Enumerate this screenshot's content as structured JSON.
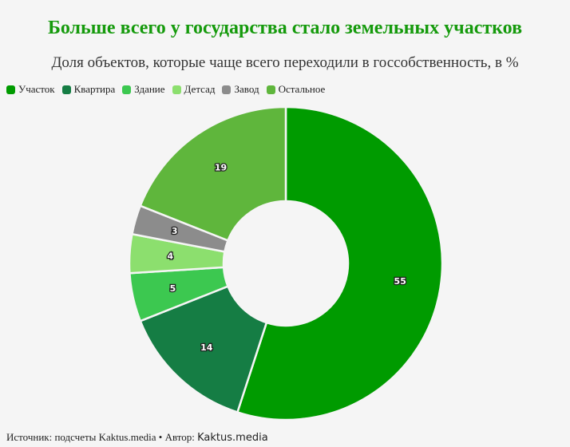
{
  "title": "Больше всего у государства стало земельных участков",
  "subtitle": "Доля объектов, которые чаще всего переходили в госсобственность, в %",
  "chart_data": {
    "type": "pie",
    "categories": [
      "Участок",
      "Квартира",
      "Здание",
      "Детсад",
      "Завод",
      "Остальное"
    ],
    "values": [
      55,
      14,
      5,
      4,
      3,
      19
    ],
    "colors": [
      "#009b00",
      "#157d44",
      "#3cc850",
      "#8cdf6e",
      "#8c8c8c",
      "#5fb63c"
    ],
    "legend_position": "top-left",
    "donut": true
  },
  "footer": {
    "source_label": "Источник:",
    "source_value": "подсчеты Kaktus.media",
    "separator": "•",
    "author_label": "Автор:",
    "author_value": "Kaktus.media"
  }
}
